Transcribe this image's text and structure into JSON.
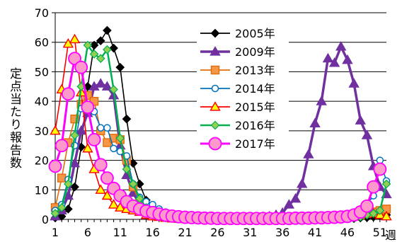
{
  "chart_data": {
    "type": "line",
    "ylabel": "定点当たり報告数",
    "xlabel": "週",
    "xlim": [
      1,
      52
    ],
    "ylim": [
      0,
      70
    ],
    "y_ticks": [
      0,
      10,
      20,
      30,
      40,
      50,
      60,
      70
    ],
    "x_ticks": [
      1,
      6,
      11,
      16,
      21,
      26,
      31,
      36,
      41,
      46,
      51
    ],
    "grid": "horizontal",
    "legend_position": "top-center",
    "series": [
      {
        "name": "2005年",
        "color": "#000000",
        "marker": "diamond",
        "weeks": [
          1,
          2,
          3,
          4,
          5,
          6,
          7,
          8,
          9,
          10,
          11,
          12,
          13,
          14,
          15,
          16,
          17,
          18,
          19,
          20,
          21,
          22,
          23,
          24,
          25,
          26,
          27,
          28,
          29,
          30,
          31,
          32,
          33,
          34,
          35,
          36,
          37,
          38,
          39,
          40,
          41,
          42,
          43,
          44,
          45,
          46,
          47,
          48,
          49,
          50,
          51,
          52
        ],
        "values": [
          0.5,
          1,
          3.5,
          11,
          24.5,
          45,
          59,
          60.5,
          64,
          58,
          51.5,
          34,
          19,
          12,
          6.5,
          4,
          2.5,
          1.5,
          1,
          0.6,
          0.4,
          0.3,
          0.2,
          0.2,
          0.1,
          0.1,
          0.1,
          0.1,
          0.1,
          0.1,
          0.1,
          0.1,
          0.1,
          0.1,
          0.1,
          0.1,
          0.1,
          0.1,
          0.1,
          0.1,
          0.1,
          0.1,
          0.1,
          0.2,
          0.2,
          0.3,
          0.3,
          0.5,
          0.6,
          0.8,
          1.2,
          1.5
        ]
      },
      {
        "name": "2009年",
        "color": "#7030A0",
        "marker": "triangle",
        "weeks": [
          1,
          2,
          3,
          4,
          5,
          6,
          7,
          8,
          9,
          10,
          11,
          12,
          13,
          14,
          15,
          16,
          17,
          18,
          19,
          20,
          21,
          22,
          23,
          24,
          25,
          26,
          27,
          28,
          29,
          30,
          31,
          32,
          33,
          34,
          35,
          36,
          37,
          38,
          39,
          40,
          41,
          42,
          43,
          44,
          45,
          46,
          47,
          48,
          49,
          50,
          51,
          52
        ],
        "values": [
          1,
          3,
          8,
          19,
          30,
          36,
          45,
          46,
          45,
          42,
          25,
          15,
          9,
          5,
          2.5,
          1.5,
          1,
          0.8,
          0.5,
          0.4,
          0.3,
          0.2,
          0.1,
          0.1,
          0.1,
          0.1,
          0.1,
          0.1,
          0.1,
          0.2,
          0.3,
          0.5,
          0.8,
          1,
          1.5,
          2.2,
          5,
          7,
          12,
          22,
          32.5,
          40,
          54.5,
          53,
          58.5,
          54,
          46,
          33.5,
          28.5,
          18,
          11,
          8.5
        ]
      },
      {
        "name": "2013年",
        "color": "#E36C0A",
        "fill": "#F79646",
        "marker": "square",
        "weeks": [
          1,
          2,
          3,
          4,
          5,
          6,
          7,
          8,
          9,
          10,
          11,
          12,
          13,
          14,
          15,
          16,
          17,
          18,
          19,
          20,
          21,
          22,
          23,
          24,
          25,
          26,
          27,
          28,
          29,
          30,
          31,
          32,
          33,
          34,
          35,
          36,
          37,
          38,
          39,
          40,
          41,
          42,
          43,
          44,
          45,
          46,
          47,
          48,
          49,
          50,
          51,
          52
        ],
        "values": [
          4,
          14,
          26,
          34,
          39,
          42,
          40,
          30,
          26,
          27.5,
          27,
          20,
          11,
          5.5,
          3,
          1.8,
          1.2,
          0.8,
          0.5,
          0.3,
          0.2,
          0.1,
          0.1,
          0.1,
          0.1,
          0.1,
          0.1,
          0.1,
          0.1,
          0.1,
          0.1,
          0.1,
          0.1,
          0.1,
          0.1,
          0.1,
          0.1,
          0.1,
          0.1,
          0.1,
          0.2,
          0.2,
          0.3,
          0.4,
          0.5,
          0.7,
          1,
          1.5,
          2,
          2.5,
          3,
          3.5
        ]
      },
      {
        "name": "2014年",
        "color": "#0070C0",
        "marker": "circle-open",
        "weeks": [
          1,
          2,
          3,
          4,
          5,
          6,
          7,
          8,
          9,
          10,
          11,
          12,
          13,
          14,
          15,
          16,
          17,
          18,
          19,
          20,
          21,
          22,
          23,
          24,
          25,
          26,
          27,
          28,
          29,
          30,
          31,
          32,
          33,
          34,
          35,
          36,
          37,
          38,
          39,
          40,
          41,
          42,
          43,
          44,
          45,
          46,
          47,
          48,
          49,
          50,
          51,
          52
        ],
        "values": [
          3,
          5,
          13.5,
          25,
          37.5,
          37.5,
          36.5,
          31,
          31,
          24,
          23,
          21.5,
          12,
          7.5,
          6,
          5,
          3.5,
          2.5,
          1.5,
          1,
          0.6,
          0.4,
          0.3,
          0.2,
          0.2,
          0.2,
          0.2,
          0.2,
          0.2,
          0.2,
          0.2,
          0.2,
          0.2,
          0.2,
          0.2,
          0.2,
          0.2,
          0.3,
          0.3,
          0.4,
          0.5,
          0.6,
          0.8,
          1,
          1.2,
          1.5,
          2,
          3,
          5,
          8,
          20,
          13
        ]
      },
      {
        "name": "2015年",
        "color": "#FF0000",
        "fill": "#FFFF00",
        "marker": "triangle",
        "weeks": [
          1,
          2,
          3,
          4,
          5,
          6,
          7,
          8,
          9,
          10,
          11,
          12,
          13,
          14,
          15,
          16,
          17,
          18,
          19,
          20,
          21,
          22,
          23,
          24,
          25,
          26,
          27,
          28,
          29,
          30,
          31,
          32,
          33,
          34,
          35,
          36,
          37,
          38,
          39,
          40,
          41,
          42,
          43,
          44,
          45,
          46,
          47,
          48,
          49,
          50,
          51,
          52
        ],
        "values": [
          30,
          44,
          59.5,
          61,
          43,
          24,
          17,
          10,
          8,
          5,
          4,
          3.5,
          3,
          2.5,
          1.5,
          1,
          0.8,
          0.5,
          0.3,
          0.2,
          0.1,
          0.1,
          0.1,
          0.1,
          0.1,
          0.1,
          0.1,
          0.1,
          0.1,
          0.1,
          0.1,
          0.1,
          0.1,
          0.1,
          0.1,
          0.1,
          0.1,
          0.1,
          0.1,
          0.2,
          0.2,
          0.3,
          0.4,
          0.5,
          0.8,
          1,
          1.5,
          2,
          2.5,
          2,
          1.5,
          1
        ]
      },
      {
        "name": "2016年",
        "color": "#00B050",
        "fill": "#92D050",
        "marker": "diamond",
        "weeks": [
          1,
          2,
          3,
          4,
          5,
          6,
          7,
          8,
          9,
          10,
          11,
          12,
          13,
          14,
          15,
          16,
          17,
          18,
          19,
          20,
          21,
          22,
          23,
          24,
          25,
          26,
          27,
          28,
          29,
          30,
          31,
          32,
          33,
          34,
          35,
          36,
          37,
          38,
          39,
          40,
          41,
          42,
          43,
          44,
          45,
          46,
          47,
          48,
          49,
          50,
          51,
          52
        ],
        "values": [
          2,
          4,
          12,
          28.5,
          45,
          59,
          56,
          54.5,
          57.5,
          44,
          27.5,
          17,
          12,
          7,
          4,
          2.5,
          1.5,
          1,
          0.6,
          0.4,
          0.3,
          0.2,
          0.1,
          0.1,
          0.1,
          0.1,
          0.1,
          0.1,
          0.1,
          0.1,
          0.1,
          0.1,
          0.1,
          0.1,
          0.1,
          0.1,
          0.1,
          0.1,
          0.1,
          0.1,
          0.1,
          0.1,
          0.2,
          0.2,
          0.3,
          0.4,
          0.6,
          0.8,
          1.5,
          2,
          3,
          12
        ]
      },
      {
        "name": "2017年",
        "color": "#FF00FF",
        "fill": "#FF99CC",
        "marker": "circle",
        "weeks": [
          1,
          2,
          3,
          4,
          5,
          6,
          7,
          8,
          9,
          10,
          11,
          12,
          13,
          14,
          15,
          16,
          17,
          18,
          19,
          20,
          21,
          22,
          23,
          24,
          25,
          26,
          27,
          28,
          29,
          30,
          31,
          32,
          33,
          34,
          35,
          36,
          37,
          38,
          39,
          40,
          41,
          42,
          43,
          44,
          45,
          46,
          47,
          48,
          49,
          50,
          51,
          52
        ],
        "values": [
          18,
          25,
          42.5,
          54.5,
          51.5,
          38,
          27,
          18.5,
          14,
          10.5,
          8,
          6,
          4.5,
          3.5,
          2.8,
          2.3,
          1.8,
          1.4,
          1.1,
          0.9,
          0.7,
          0.6,
          0.5,
          0.4,
          0.4,
          0.3,
          0.3,
          0.3,
          0.3,
          0.3,
          0.3,
          0.3,
          0.3,
          0.3,
          0.3,
          0.3,
          0.3,
          0.4,
          0.4,
          0.4,
          0.5,
          0.5,
          0.6,
          0.7,
          0.8,
          1,
          1.5,
          2.5,
          4.5,
          11,
          17,
          null
        ]
      }
    ]
  }
}
